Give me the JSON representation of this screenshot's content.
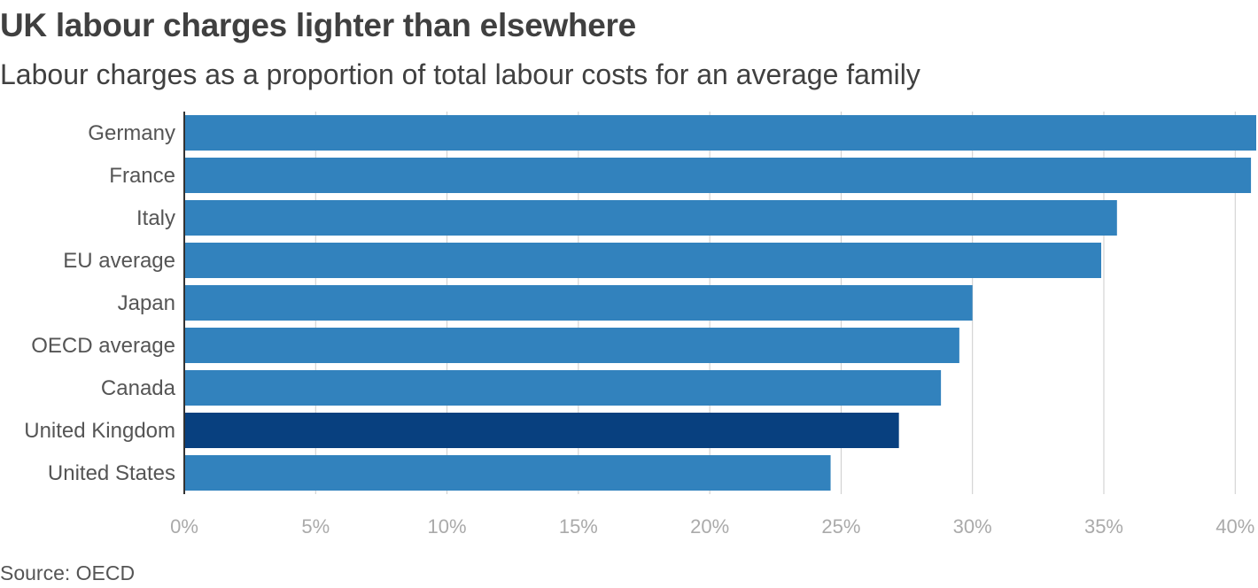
{
  "title": "UK labour charges lighter than elsewhere",
  "subtitle": "Labour charges as a proportion of total labour costs for an average family",
  "source": "Source: OECD",
  "colors": {
    "bar": "#3282bd",
    "highlight": "#08407f",
    "grid": "#cccccc",
    "axis": "#333333",
    "category_label": "#555555",
    "tick_label": "#aaaaaa"
  },
  "chart_data": {
    "type": "bar",
    "orientation": "horizontal",
    "categories": [
      "Germany",
      "France",
      "Italy",
      "EU average",
      "Japan",
      "OECD average",
      "Canada",
      "United Kingdom",
      "United States"
    ],
    "values": [
      40.8,
      40.6,
      35.5,
      34.9,
      30.0,
      29.5,
      28.8,
      27.2,
      24.6
    ],
    "highlight": "United Kingdom",
    "xlim": [
      0,
      40.8
    ],
    "xticks": [
      0,
      5,
      10,
      15,
      20,
      25,
      30,
      35,
      40
    ],
    "xtick_labels": [
      "0%",
      "5%",
      "10%",
      "15%",
      "20%",
      "25%",
      "30%",
      "35%",
      "40%"
    ],
    "grid": true,
    "xlabel": "",
    "ylabel": ""
  }
}
